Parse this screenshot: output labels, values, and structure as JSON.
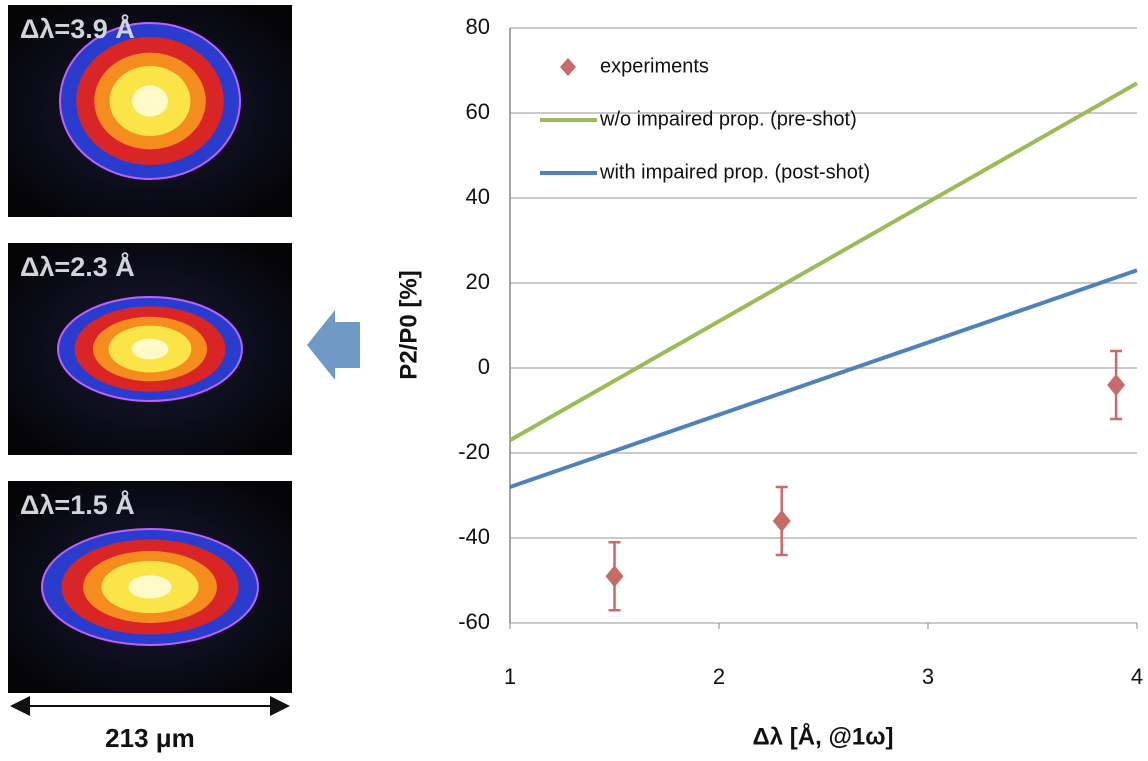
{
  "chart_data": {
    "type": "line",
    "xlabel": "Δλ [Å, @1ω]",
    "ylabel": "P2/P0 [%]",
    "xlim": [
      1,
      4
    ],
    "xticks": [
      1,
      2,
      3,
      4
    ],
    "ylim": [
      -60,
      80
    ],
    "yticks": [
      -60,
      -40,
      -20,
      0,
      20,
      40,
      60,
      80
    ],
    "grid": true,
    "legend": "upper left",
    "series": [
      {
        "name": "experiments",
        "type": "scatter",
        "color": "#c96a6a",
        "x": [
          1.5,
          2.3,
          3.9
        ],
        "values": [
          -49,
          -36,
          -4
        ],
        "errors": [
          8,
          8,
          8
        ]
      },
      {
        "name": "w/o impaired prop. (pre-shot)",
        "type": "line",
        "color": "#9bbb59",
        "x": [
          1,
          4
        ],
        "values": [
          -17,
          67
        ]
      },
      {
        "name": "with impaired prop. (post-shot)",
        "type": "line",
        "color": "#4f81bd",
        "x": [
          1,
          4
        ],
        "values": [
          -28,
          23
        ]
      }
    ]
  },
  "side_panels": {
    "labels": [
      "Δλ=3.9 Å",
      "Δλ=2.3 Å",
      "Δλ=1.5 Å"
    ],
    "scale_label": "213 μm"
  }
}
